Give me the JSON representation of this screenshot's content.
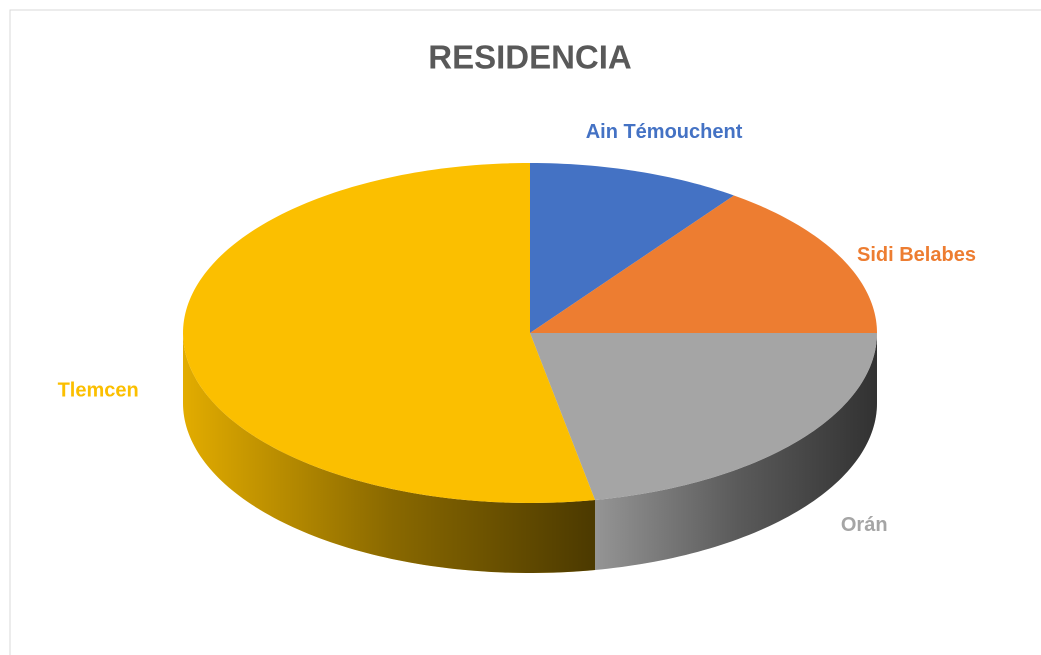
{
  "chart_data": {
    "type": "pie3d",
    "title": "RESIDENCIA",
    "categories": [
      "Ain Témouchent",
      "Sidi Belabes",
      "Orán",
      "Tlemcen"
    ],
    "values": [
      10,
      15,
      22,
      53
    ],
    "colors": [
      "#4472c4",
      "#ed7d31",
      "#a5a5a5",
      "#fbbf00"
    ]
  }
}
